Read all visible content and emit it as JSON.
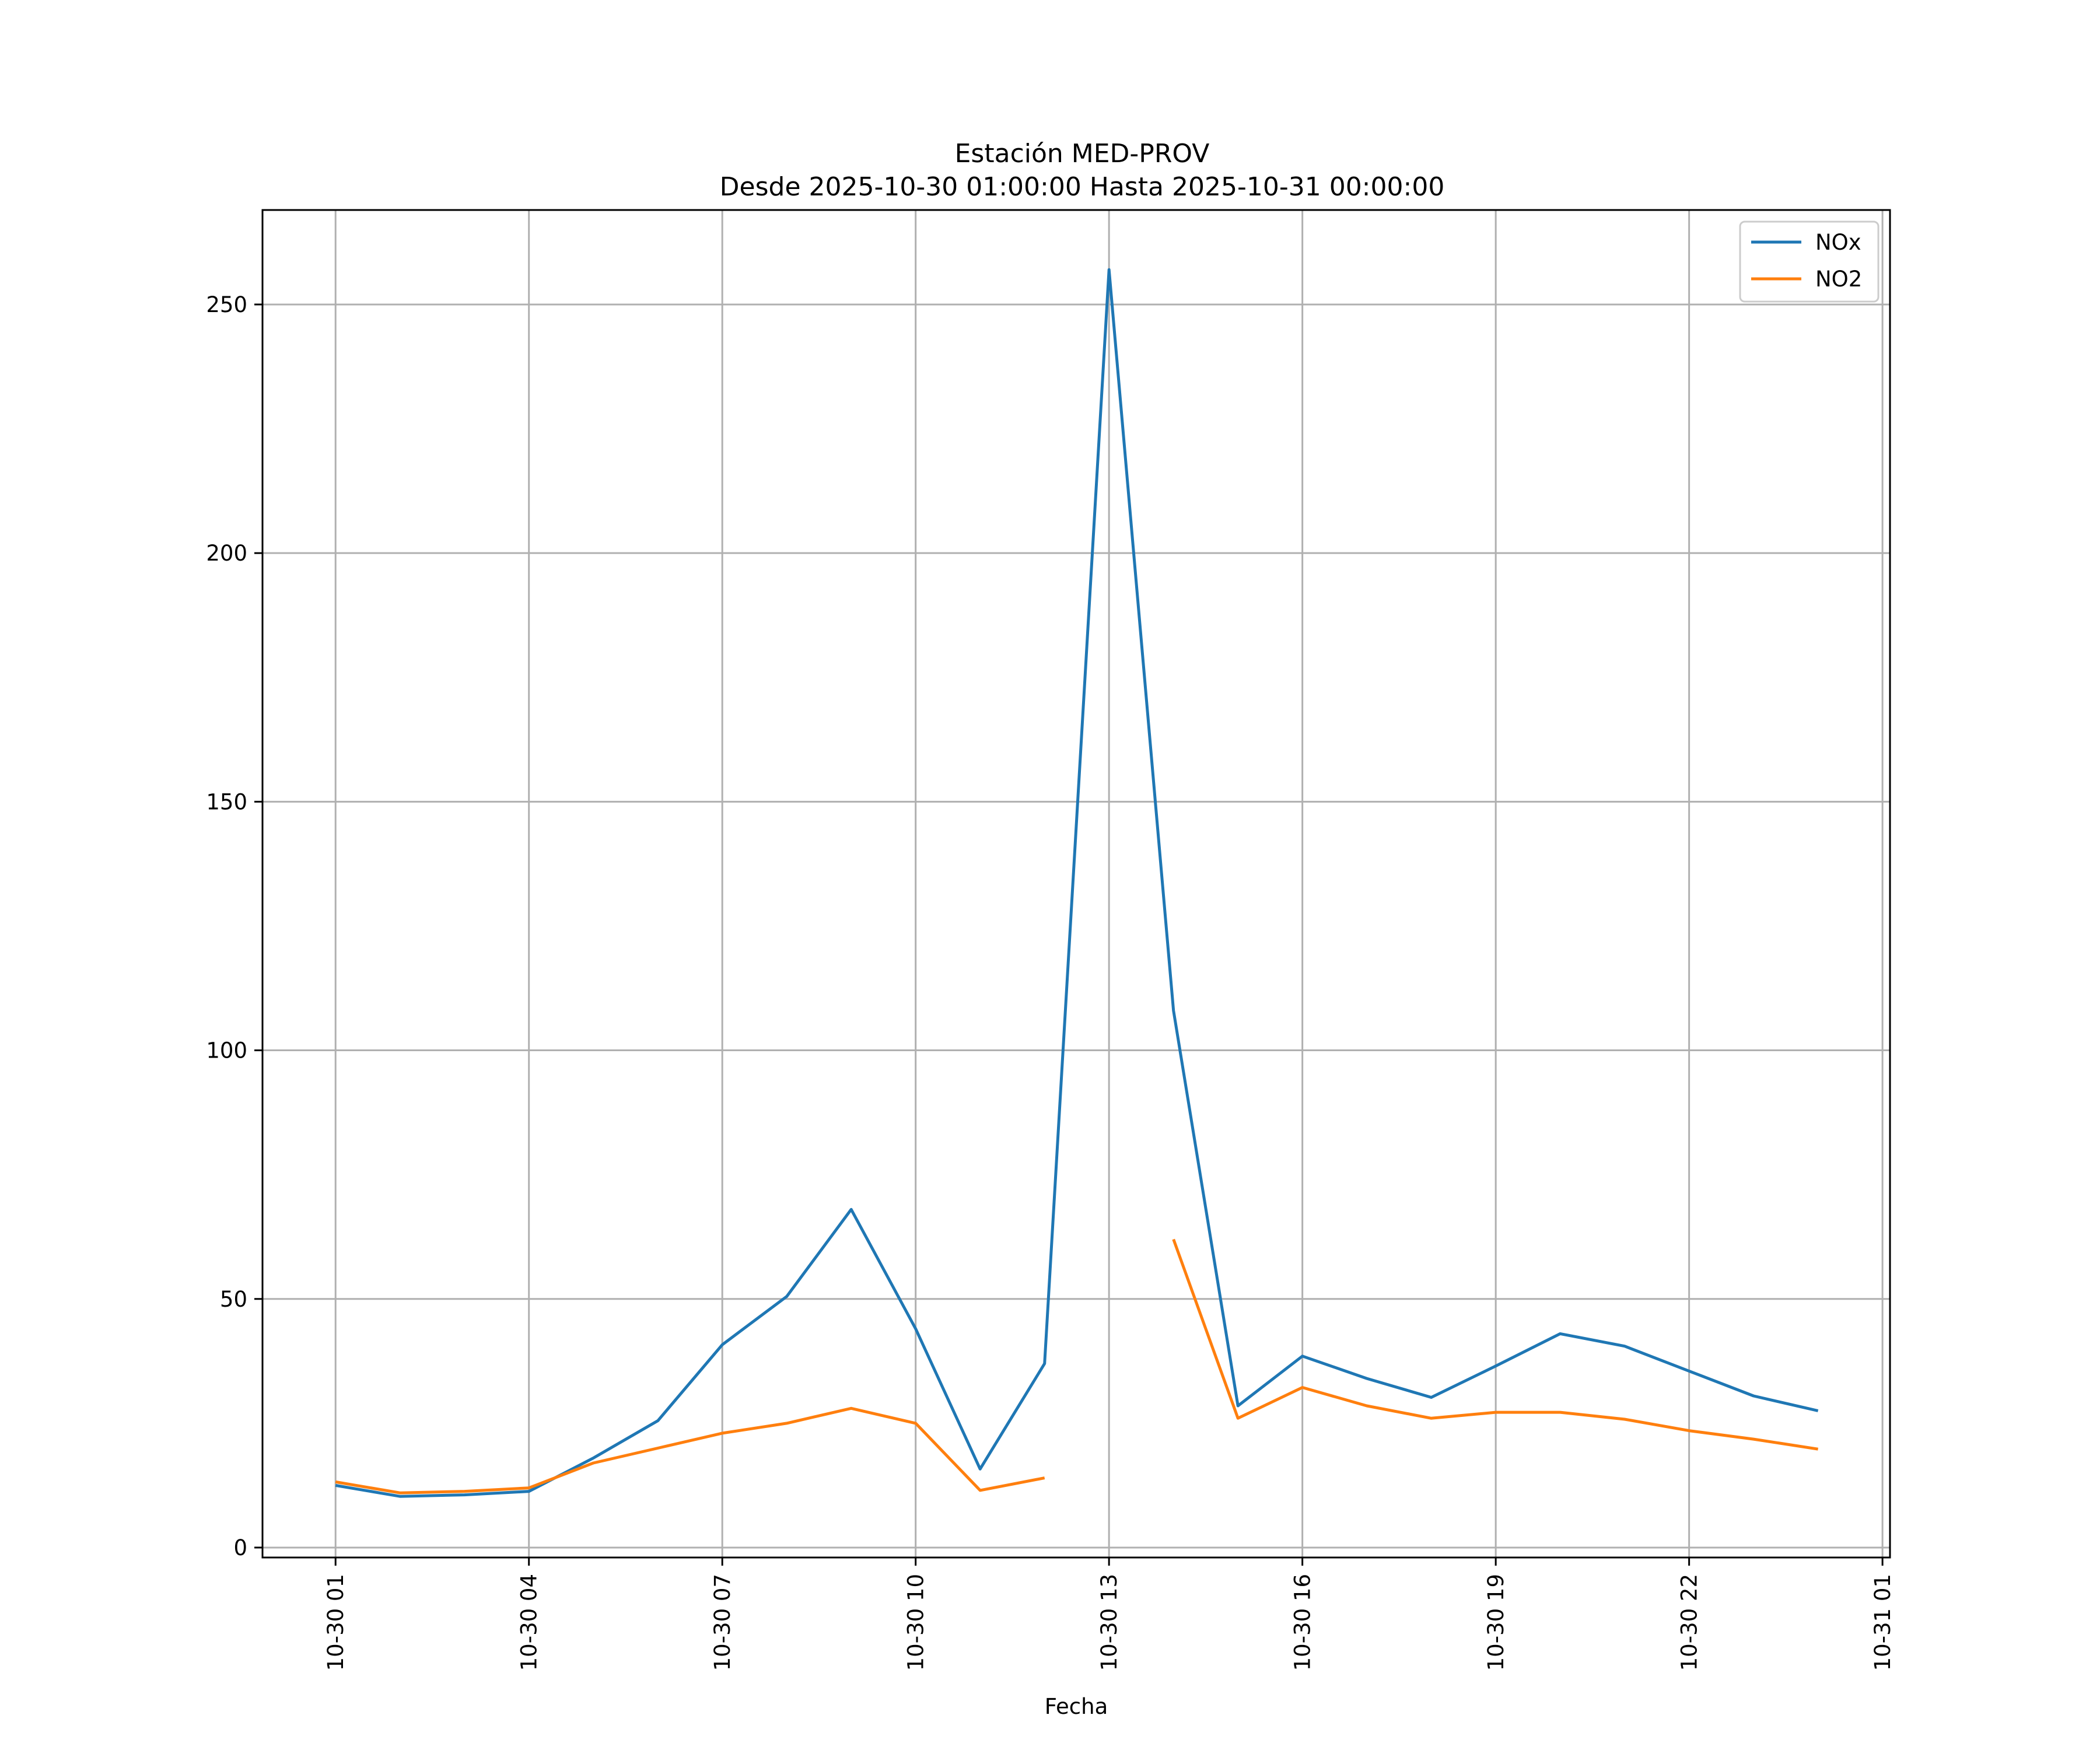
{
  "chart_data": {
    "type": "line",
    "title": "Estación MED-PROV",
    "subtitle": "Desde 2025-10-30 01:00:00 Hasta 2025-10-31 00:00:00",
    "xlabel": "Fecha",
    "ylabel": "",
    "x": [
      "2025-10-30 01:00",
      "2025-10-30 02:00",
      "2025-10-30 03:00",
      "2025-10-30 04:00",
      "2025-10-30 05:00",
      "2025-10-30 06:00",
      "2025-10-30 07:00",
      "2025-10-30 08:00",
      "2025-10-30 09:00",
      "2025-10-30 10:00",
      "2025-10-30 11:00",
      "2025-10-30 12:00",
      "2025-10-30 13:00",
      "2025-10-30 14:00",
      "2025-10-30 15:00",
      "2025-10-30 16:00",
      "2025-10-30 17:00",
      "2025-10-30 18:00",
      "2025-10-30 19:00",
      "2025-10-30 20:00",
      "2025-10-30 21:00",
      "2025-10-30 22:00",
      "2025-10-30 23:00",
      "2025-10-31 00:00"
    ],
    "series": [
      {
        "name": "NOx",
        "color": "#1f77b4",
        "values": [
          12.5,
          10.3,
          10.6,
          11.3,
          18.0,
          25.5,
          40.8,
          50.5,
          68.0,
          44.0,
          15.8,
          37.0,
          257.0,
          108.0,
          28.5,
          38.5,
          34.0,
          30.2,
          36.5,
          43.0,
          40.5,
          35.5,
          30.5,
          27.5
        ]
      },
      {
        "name": "NO2",
        "color": "#ff7f0e",
        "values": [
          13.2,
          11.0,
          11.3,
          12.0,
          17.0,
          20.0,
          23.0,
          25.0,
          28.0,
          25.0,
          11.5,
          14.0,
          null,
          62.0,
          26.0,
          32.2,
          28.5,
          26.0,
          27.2,
          27.2,
          25.8,
          23.5,
          21.8,
          19.8
        ]
      }
    ],
    "x_ticks": [
      "10-30 01",
      "10-30 04",
      "10-30 07",
      "10-30 10",
      "10-30 13",
      "10-30 16",
      "10-30 19",
      "10-30 22",
      "10-31 01"
    ],
    "y_ticks": [
      0,
      50,
      100,
      150,
      200,
      250
    ],
    "ylim": [
      -2,
      269
    ],
    "xlim": [
      "2025-10-29 23:52",
      "2025-10-31 01:07"
    ],
    "grid": true,
    "legend_position": "top-right"
  }
}
